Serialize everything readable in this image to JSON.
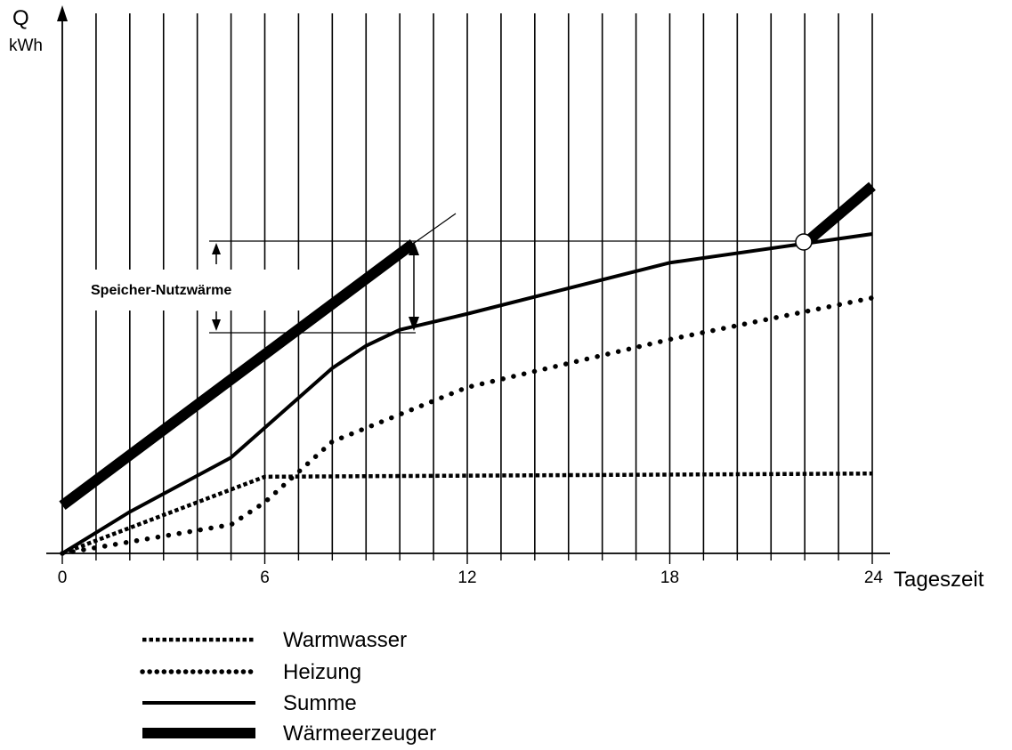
{
  "chart_data": {
    "type": "line",
    "title": "",
    "ylabel": "Q",
    "yunit": "kWh",
    "xlabel": "Tageszeit",
    "xlim": [
      0,
      24
    ],
    "ylim": [
      0,
      10
    ],
    "xticks": [
      "0",
      "6",
      "12",
      "18",
      "24"
    ],
    "grid": "vertical lines every hour",
    "annotation": "Speicher-Nutzwärme",
    "series": [
      {
        "name": "Warmwasser",
        "style": "dense-dotted",
        "x": [
          0,
          6,
          24
        ],
        "y": [
          0,
          2.4,
          2.5
        ]
      },
      {
        "name": "Heizung",
        "style": "dotted",
        "x": [
          0,
          5,
          6,
          8,
          12,
          18,
          24
        ],
        "y": [
          0,
          0.9,
          1.6,
          3.5,
          5.2,
          6.7,
          8.0
        ]
      },
      {
        "name": "Summe",
        "style": "solid",
        "x": [
          0,
          2,
          5,
          8,
          9,
          10,
          12,
          18,
          24
        ],
        "y": [
          0,
          1.3,
          3.0,
          5.8,
          6.5,
          7.0,
          7.5,
          9.1,
          10.0
        ]
      },
      {
        "name": "Wärmeerzeuger",
        "style": "thick",
        "segments": [
          {
            "x": [
              0,
              10.4
            ],
            "y": [
              1.5,
              9.7
            ]
          },
          {
            "x": [
              22,
              24
            ],
            "y": [
              9.7,
              11.5
            ]
          }
        ]
      }
    ],
    "legend_position": "bottom-left",
    "colors": {
      "line": "#000000",
      "background": "#ffffff"
    }
  }
}
